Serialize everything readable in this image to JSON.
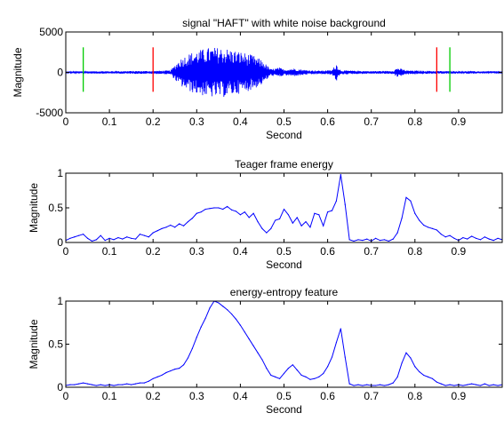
{
  "chart_data": [
    {
      "type": "line",
      "title": "signal \"HAFT\" with white noise background",
      "xlabel": "Second",
      "ylabel": "Magnitude",
      "xlim": [
        0,
        1.0
      ],
      "ylim": [
        -5000,
        5000
      ],
      "xticks": [
        0,
        0.1,
        0.2,
        0.3,
        0.4,
        0.5,
        0.6,
        0.7,
        0.8,
        0.9
      ],
      "xtick_labels": [
        "0",
        "0.1",
        "0.2",
        "0.3",
        "0.4",
        "0.5",
        "0.6",
        "0.7",
        "0.8",
        "0.9"
      ],
      "yticks": [
        -5000,
        0,
        5000
      ],
      "ytick_labels": [
        "-5000",
        "0",
        "5000"
      ],
      "grid": false,
      "series": [
        {
          "color": "#0000ff",
          "envelope": [
            [
              0.0,
              120
            ],
            [
              0.05,
              150
            ],
            [
              0.1,
              150
            ],
            [
              0.15,
              170
            ],
            [
              0.2,
              180
            ],
            [
              0.24,
              250
            ],
            [
              0.26,
              1600
            ],
            [
              0.28,
              2300
            ],
            [
              0.3,
              2700
            ],
            [
              0.33,
              3100
            ],
            [
              0.36,
              3100
            ],
            [
              0.4,
              2600
            ],
            [
              0.43,
              2100
            ],
            [
              0.45,
              1500
            ],
            [
              0.47,
              400
            ],
            [
              0.49,
              600
            ],
            [
              0.5,
              350
            ],
            [
              0.52,
              500
            ],
            [
              0.55,
              300
            ],
            [
              0.58,
              220
            ],
            [
              0.61,
              280
            ],
            [
              0.62,
              1100
            ],
            [
              0.63,
              250
            ],
            [
              0.7,
              160
            ],
            [
              0.75,
              200
            ],
            [
              0.76,
              600
            ],
            [
              0.78,
              250
            ],
            [
              0.85,
              170
            ],
            [
              0.9,
              150
            ],
            [
              1.0,
              140
            ]
          ]
        }
      ],
      "markers": [
        {
          "x": 0.04,
          "color": "#00cc00",
          "ymin": -2400,
          "ymax": 3100
        },
        {
          "x": 0.2,
          "color": "#ff0000",
          "ymin": -2400,
          "ymax": 3100
        },
        {
          "x": 0.85,
          "color": "#ff0000",
          "ymin": -2400,
          "ymax": 3100
        },
        {
          "x": 0.88,
          "color": "#00cc00",
          "ymin": -2400,
          "ymax": 3100
        }
      ]
    },
    {
      "type": "line",
      "title": "Teager frame energy",
      "xlabel": "Second",
      "ylabel": "Magnitude",
      "xlim": [
        0,
        1.0
      ],
      "ylim": [
        0,
        1
      ],
      "xticks": [
        0,
        0.1,
        0.2,
        0.3,
        0.4,
        0.5,
        0.6,
        0.7,
        0.8,
        0.9
      ],
      "xtick_labels": [
        "0",
        "0.1",
        "0.2",
        "0.3",
        "0.4",
        "0.5",
        "0.6",
        "0.7",
        "0.8",
        "0.9"
      ],
      "yticks": [
        0,
        0.5,
        1
      ],
      "ytick_labels": [
        "0",
        "0.5",
        "1"
      ],
      "grid": false,
      "series": [
        {
          "color": "#0000ff",
          "x": [
            0.0,
            0.01,
            0.02,
            0.03,
            0.04,
            0.05,
            0.06,
            0.07,
            0.08,
            0.09,
            0.1,
            0.11,
            0.12,
            0.13,
            0.14,
            0.15,
            0.16,
            0.17,
            0.18,
            0.19,
            0.2,
            0.21,
            0.22,
            0.23,
            0.24,
            0.25,
            0.26,
            0.27,
            0.28,
            0.29,
            0.3,
            0.31,
            0.32,
            0.33,
            0.34,
            0.35,
            0.36,
            0.37,
            0.38,
            0.39,
            0.4,
            0.41,
            0.42,
            0.43,
            0.44,
            0.45,
            0.46,
            0.47,
            0.48,
            0.49,
            0.5,
            0.51,
            0.52,
            0.53,
            0.54,
            0.55,
            0.56,
            0.57,
            0.58,
            0.59,
            0.6,
            0.61,
            0.62,
            0.63,
            0.64,
            0.65,
            0.66,
            0.67,
            0.68,
            0.69,
            0.7,
            0.71,
            0.72,
            0.73,
            0.74,
            0.75,
            0.76,
            0.77,
            0.78,
            0.79,
            0.8,
            0.81,
            0.82,
            0.83,
            0.84,
            0.85,
            0.86,
            0.87,
            0.88,
            0.89,
            0.9,
            0.91,
            0.92,
            0.93,
            0.94,
            0.95,
            0.96,
            0.97,
            0.98,
            0.99,
            1.0
          ],
          "y": [
            0.03,
            0.06,
            0.08,
            0.1,
            0.12,
            0.06,
            0.02,
            0.04,
            0.1,
            0.03,
            0.06,
            0.04,
            0.07,
            0.05,
            0.08,
            0.06,
            0.05,
            0.12,
            0.1,
            0.08,
            0.14,
            0.17,
            0.2,
            0.22,
            0.25,
            0.22,
            0.27,
            0.24,
            0.3,
            0.35,
            0.42,
            0.44,
            0.48,
            0.49,
            0.5,
            0.5,
            0.48,
            0.52,
            0.47,
            0.45,
            0.4,
            0.44,
            0.36,
            0.42,
            0.3,
            0.2,
            0.14,
            0.2,
            0.32,
            0.34,
            0.48,
            0.4,
            0.28,
            0.36,
            0.24,
            0.3,
            0.22,
            0.42,
            0.4,
            0.24,
            0.44,
            0.46,
            0.6,
            0.98,
            0.55,
            0.04,
            0.02,
            0.04,
            0.03,
            0.05,
            0.02,
            0.06,
            0.03,
            0.04,
            0.02,
            0.05,
            0.14,
            0.35,
            0.65,
            0.6,
            0.42,
            0.32,
            0.25,
            0.22,
            0.2,
            0.18,
            0.12,
            0.08,
            0.1,
            0.06,
            0.03,
            0.07,
            0.05,
            0.09,
            0.06,
            0.04,
            0.08,
            0.05,
            0.03,
            0.06,
            0.04
          ]
        }
      ]
    },
    {
      "type": "line",
      "title": "energy-entropy feature",
      "xlabel": "Second",
      "ylabel": "Magnitude",
      "xlim": [
        0,
        1.0
      ],
      "ylim": [
        0,
        1
      ],
      "xticks": [
        0,
        0.1,
        0.2,
        0.3,
        0.4,
        0.5,
        0.6,
        0.7,
        0.8,
        0.9
      ],
      "xtick_labels": [
        "0",
        "0.1",
        "0.2",
        "0.3",
        "0.4",
        "0.5",
        "0.6",
        "0.7",
        "0.8",
        "0.9"
      ],
      "yticks": [
        0,
        0.5,
        1
      ],
      "ytick_labels": [
        "0",
        "0.5",
        "1"
      ],
      "grid": false,
      "series": [
        {
          "color": "#0000ff",
          "x": [
            0.0,
            0.01,
            0.02,
            0.03,
            0.04,
            0.05,
            0.06,
            0.07,
            0.08,
            0.09,
            0.1,
            0.11,
            0.12,
            0.13,
            0.14,
            0.15,
            0.16,
            0.17,
            0.18,
            0.19,
            0.2,
            0.21,
            0.22,
            0.23,
            0.24,
            0.25,
            0.26,
            0.27,
            0.28,
            0.29,
            0.3,
            0.31,
            0.32,
            0.33,
            0.34,
            0.35,
            0.36,
            0.37,
            0.38,
            0.39,
            0.4,
            0.41,
            0.42,
            0.43,
            0.44,
            0.45,
            0.46,
            0.47,
            0.48,
            0.49,
            0.5,
            0.51,
            0.52,
            0.53,
            0.54,
            0.55,
            0.56,
            0.57,
            0.58,
            0.59,
            0.6,
            0.61,
            0.62,
            0.63,
            0.64,
            0.65,
            0.66,
            0.67,
            0.68,
            0.69,
            0.7,
            0.71,
            0.72,
            0.73,
            0.74,
            0.75,
            0.76,
            0.77,
            0.78,
            0.79,
            0.8,
            0.81,
            0.82,
            0.83,
            0.84,
            0.85,
            0.86,
            0.87,
            0.88,
            0.89,
            0.9,
            0.91,
            0.92,
            0.93,
            0.94,
            0.95,
            0.96,
            0.97,
            0.98,
            0.99,
            1.0
          ],
          "y": [
            0.02,
            0.03,
            0.03,
            0.04,
            0.05,
            0.04,
            0.03,
            0.02,
            0.03,
            0.02,
            0.03,
            0.02,
            0.03,
            0.03,
            0.04,
            0.03,
            0.04,
            0.05,
            0.05,
            0.07,
            0.1,
            0.12,
            0.14,
            0.17,
            0.19,
            0.21,
            0.22,
            0.26,
            0.34,
            0.45,
            0.58,
            0.7,
            0.8,
            0.92,
            1.0,
            0.98,
            0.94,
            0.9,
            0.85,
            0.79,
            0.72,
            0.64,
            0.56,
            0.48,
            0.4,
            0.32,
            0.22,
            0.14,
            0.12,
            0.1,
            0.16,
            0.22,
            0.26,
            0.2,
            0.14,
            0.12,
            0.09,
            0.1,
            0.12,
            0.16,
            0.24,
            0.35,
            0.52,
            0.68,
            0.35,
            0.04,
            0.02,
            0.03,
            0.02,
            0.03,
            0.02,
            0.02,
            0.03,
            0.02,
            0.03,
            0.05,
            0.12,
            0.28,
            0.4,
            0.34,
            0.24,
            0.18,
            0.14,
            0.12,
            0.1,
            0.06,
            0.04,
            0.02,
            0.03,
            0.02,
            0.03,
            0.02,
            0.03,
            0.04,
            0.03,
            0.02,
            0.04,
            0.02,
            0.03,
            0.02,
            0.03
          ]
        }
      ]
    }
  ]
}
